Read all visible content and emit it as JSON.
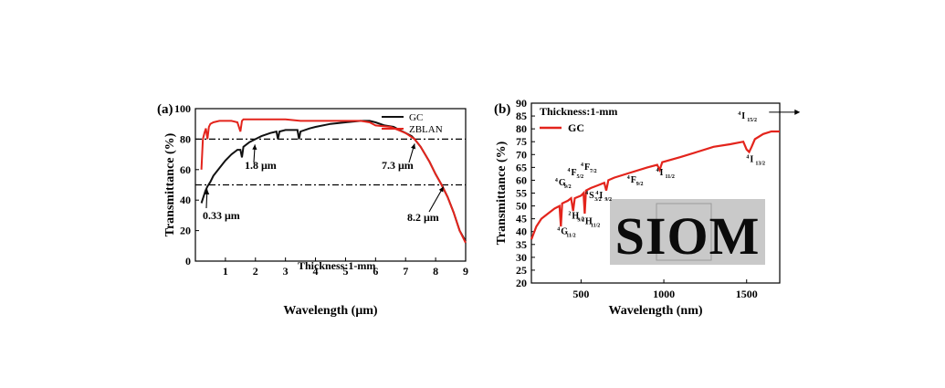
{
  "chart_data": [
    {
      "panel": "(a)",
      "type": "line",
      "xlabel": "Wavelength (μm)",
      "ylabel": "Transmittance (%)",
      "xlim": [
        0,
        9
      ],
      "ylim": [
        0,
        100
      ],
      "xticks": [
        1,
        2,
        3,
        4,
        5,
        6,
        7,
        8,
        9
      ],
      "yticks": [
        0,
        20,
        40,
        60,
        80,
        100
      ],
      "grid": false,
      "legend_position": "top-right",
      "series": [
        {
          "name": "GC",
          "color": "#111111",
          "x": [
            0.2,
            0.3,
            0.33,
            0.4,
            0.5,
            0.6,
            0.8,
            1.0,
            1.2,
            1.4,
            1.5,
            1.55,
            1.6,
            1.8,
            2.0,
            2.2,
            2.5,
            2.7,
            2.75,
            2.8,
            3.0,
            3.2,
            3.4,
            3.45,
            3.5,
            3.8,
            4.0,
            4.5,
            5.0,
            5.5,
            5.8,
            6.0,
            6.3,
            6.6,
            6.8,
            7.0,
            7.2,
            7.3,
            7.5,
            7.8,
            8.0,
            8.2,
            8.4,
            8.6,
            8.8,
            9.0
          ],
          "y": [
            38,
            44,
            46,
            49,
            52,
            56,
            61,
            66,
            70,
            73,
            73,
            68,
            75,
            78,
            80,
            82,
            84,
            85,
            80,
            85,
            86,
            86,
            86,
            80,
            85,
            87,
            88,
            90,
            91,
            92,
            92,
            91,
            89,
            88,
            86,
            84,
            82,
            80,
            75,
            65,
            57,
            50,
            42,
            32,
            20,
            13
          ]
        },
        {
          "name": "ZBLAN",
          "color": "#e3241c",
          "x": [
            0.2,
            0.25,
            0.3,
            0.35,
            0.4,
            0.45,
            0.5,
            0.6,
            0.8,
            1.0,
            1.2,
            1.4,
            1.5,
            1.55,
            1.6,
            2.0,
            2.5,
            3.0,
            3.5,
            4.0,
            4.5,
            5.0,
            5.5,
            5.8,
            6.0,
            6.5,
            7.0,
            7.3,
            7.5,
            7.8,
            8.0,
            8.2,
            8.4,
            8.6,
            8.8,
            9.0
          ],
          "y": [
            60,
            80,
            84,
            87,
            80,
            88,
            90,
            91,
            92,
            92,
            92,
            91,
            85,
            92,
            93,
            93,
            93,
            93,
            92,
            92,
            92,
            92,
            92,
            91,
            89,
            88,
            84,
            80,
            75,
            65,
            57,
            50,
            42,
            32,
            20,
            12
          ]
        }
      ],
      "reference_lines": [
        80,
        50
      ],
      "annotations": [
        {
          "text": "1.8 μm",
          "x": 1.8,
          "y": 80
        },
        {
          "text": "7.3 μm",
          "x": 7.3,
          "y": 80
        },
        {
          "text": "0.33 μm",
          "x": 0.33,
          "y": 50
        },
        {
          "text": "8.2 μm",
          "x": 8.2,
          "y": 50
        }
      ],
      "note": "Thickness:1-mm"
    },
    {
      "panel": "(b)",
      "type": "line",
      "xlabel": "Wavelength (nm)",
      "ylabel": "Transmittance (%)",
      "xlim": [
        200,
        1700
      ],
      "ylim": [
        20,
        90
      ],
      "xticks": [
        500,
        1000,
        1500
      ],
      "yticks": [
        20,
        25,
        30,
        35,
        40,
        45,
        50,
        55,
        60,
        65,
        70,
        75,
        80,
        85,
        90
      ],
      "grid": false,
      "legend_position": "top-left",
      "note": "Thickness:1-mm",
      "series": [
        {
          "name": "GC",
          "color": "#e3241c",
          "x": [
            200,
            230,
            260,
            300,
            340,
            370,
            378,
            386,
            420,
            440,
            452,
            462,
            500,
            515,
            522,
            530,
            560,
            600,
            640,
            652,
            665,
            700,
            800,
            900,
            960,
            975,
            990,
            1100,
            1200,
            1300,
            1400,
            1480,
            1500,
            1515,
            1530,
            1550,
            1600,
            1650,
            1700
          ],
          "y": [
            37,
            42,
            45,
            47,
            49,
            50,
            42,
            51,
            52,
            53,
            48,
            53,
            54,
            55,
            47,
            56,
            57,
            58,
            59,
            56,
            60,
            61,
            63,
            65,
            66,
            64,
            67,
            69,
            71,
            73,
            74,
            75,
            72,
            71,
            73,
            76,
            78,
            79,
            79
          ]
        }
      ],
      "band_labels": [
        {
          "text": "4",
          "sub": "G9/2",
          "x": 365,
          "y": 58
        },
        {
          "text": "4",
          "sub": "G11/2",
          "x": 378,
          "y": 39
        },
        {
          "text": "4",
          "sub": "F5/2",
          "x": 440,
          "y": 62
        },
        {
          "text": "2",
          "sub": "H9/2",
          "x": 445,
          "y": 45
        },
        {
          "text": "4",
          "sub": "F7/2",
          "x": 520,
          "y": 64
        },
        {
          "text": "2",
          "sub": "H11/2",
          "x": 525,
          "y": 43
        },
        {
          "text": "4",
          "sub": "S3/2",
          "x": 548,
          "y": 53
        },
        {
          "text": "4",
          "sub": "I9/2",
          "x": 610,
          "y": 53
        },
        {
          "text": "4",
          "sub": "F9/2",
          "x": 800,
          "y": 59
        },
        {
          "text": "4",
          "sub": "I11/2",
          "x": 975,
          "y": 62
        },
        {
          "text": "4",
          "sub": "I13/2",
          "x": 1520,
          "y": 67
        },
        {
          "text": "4",
          "sub": "I15/2",
          "x": 1470,
          "y": 84
        }
      ],
      "inset_text": "SIOM"
    }
  ]
}
